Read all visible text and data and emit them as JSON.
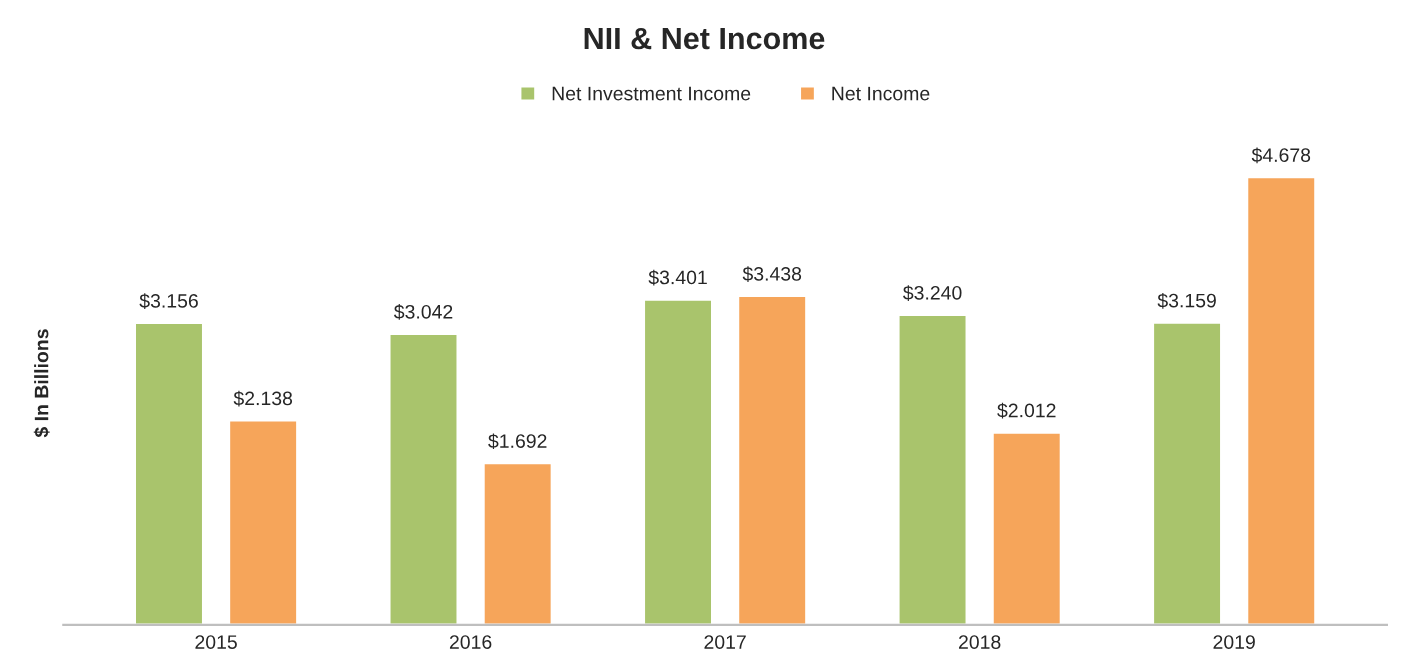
{
  "chart_data": {
    "type": "bar",
    "title": "NII & Net Income",
    "ylabel": "$ In Billions",
    "categories": [
      "2015",
      "2016",
      "2017",
      "2018",
      "2019"
    ],
    "series": [
      {
        "name": "Net Investment Income",
        "color": "#a9c46c",
        "values": [
          3.156,
          3.042,
          3.401,
          3.24,
          3.159
        ],
        "value_labels": [
          "$3.156",
          "$3.042",
          "$3.401",
          "$3.240",
          "$3.159"
        ]
      },
      {
        "name": "Net Income",
        "color": "#f6a55a",
        "values": [
          2.138,
          1.692,
          3.438,
          2.012,
          4.678
        ],
        "value_labels": [
          "$2.138",
          "$1.692",
          "$3.438",
          "$2.012",
          "$4.678"
        ]
      }
    ],
    "legend": "top",
    "grid": false
  }
}
